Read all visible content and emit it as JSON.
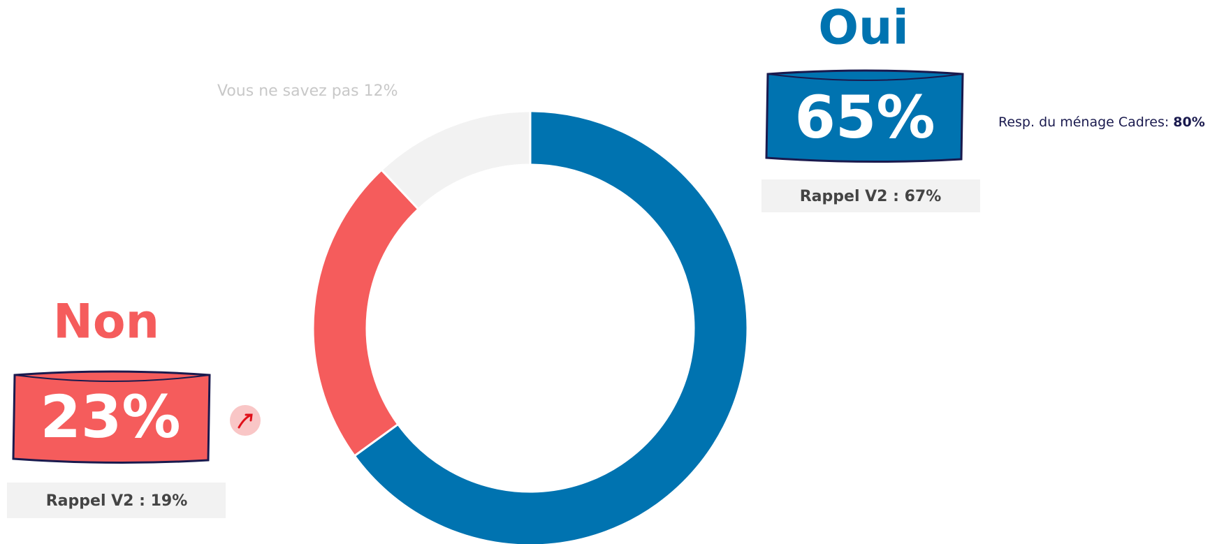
{
  "chart_data": {
    "type": "donut",
    "categories": [
      "Oui",
      "Non",
      "Vous ne savez pas"
    ],
    "values": [
      65,
      23,
      12
    ],
    "value_labels": [
      "65%",
      "23%",
      "12%"
    ],
    "colors": [
      "#0073b0",
      "#f55c5c",
      "#f2f2f2"
    ],
    "annotations": {
      "oui_recall": "Rappel V2 : 67%",
      "non_recall": "Rappel V2 : 19%",
      "oui_segment_label": "Resp. du ménage Cadres:",
      "oui_segment_value": "80%"
    }
  }
}
